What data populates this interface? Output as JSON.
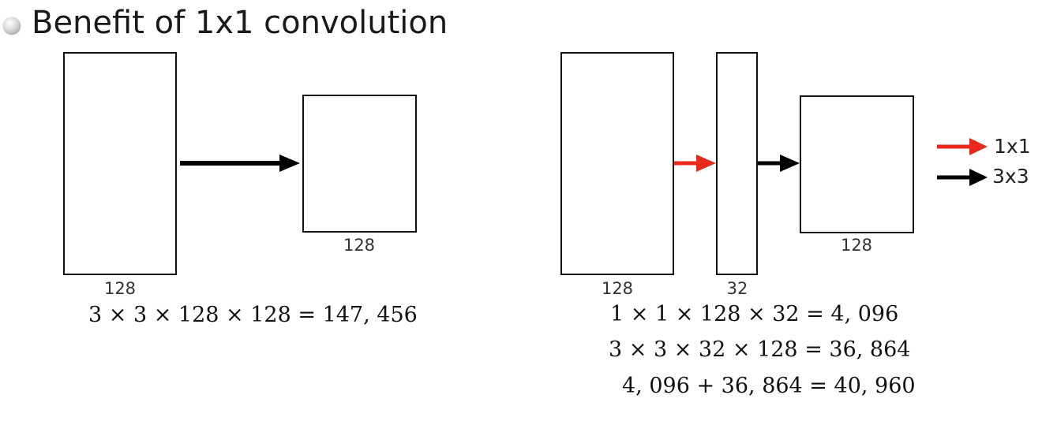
{
  "title": "Benefit of 1x1 convolution",
  "left_diagram": {
    "input_label": "128",
    "output_label": "128",
    "equation": "3 × 3 × 128 × 128 = 147, 456"
  },
  "right_diagram": {
    "input_label": "128",
    "bottleneck_label": "32",
    "output_label": "128",
    "equations": [
      "1 × 1 × 128 × 32 = 4, 096",
      "3 × 3 × 32 × 128 = 36, 864",
      "4, 096 + 36, 864 = 40, 960"
    ]
  },
  "legend": [
    {
      "label": "1x1",
      "color": "#e8291c"
    },
    {
      "label": "3x3",
      "color": "#000000"
    }
  ],
  "colors": {
    "red_arrow": "#e8291c",
    "black_arrow": "#000000"
  }
}
